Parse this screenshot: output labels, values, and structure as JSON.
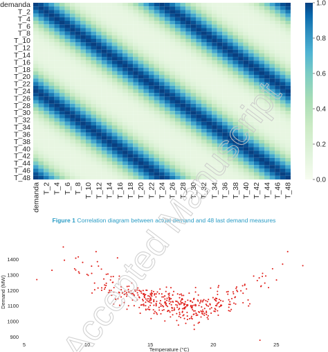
{
  "watermark": "Accepted Manuscript",
  "caption": {
    "prefix": "Figure 1",
    "text": "Correlation diagram between actual demand and 48 last demand measures"
  },
  "colors": {
    "heat_low": "#f7fcf0",
    "heat_mid": "#7bccc4",
    "heat_high": "#084081",
    "scatter_point": "#e0201b",
    "caption": "#2a9cc5"
  },
  "chart_data": [
    {
      "type": "heatmap",
      "row_labels": [
        "demanda",
        "T_2",
        "T_4",
        "T_6",
        "T_8",
        "T_10",
        "T_12",
        "T_14",
        "T_16",
        "T_18",
        "T_20",
        "T_22",
        "T_24",
        "T_26",
        "T_28",
        "T_30",
        "T_32",
        "T_34",
        "T_36",
        "T_38",
        "T_40",
        "T_42",
        "T_44",
        "T_46",
        "T_48"
      ],
      "col_labels": [
        "demanda",
        "T_2",
        "T_4",
        "T_6",
        "T_8",
        "T_10",
        "T_12",
        "T_14",
        "T_16",
        "T_18",
        "T_20",
        "T_22",
        "T_24",
        "T_26",
        "T_28",
        "T_30",
        "T_32",
        "T_34",
        "T_36",
        "T_38",
        "T_40",
        "T_42",
        "T_44",
        "T_46",
        "T_48"
      ],
      "n_variables": 49,
      "value_rule": "correlation = 0.1 + 0.9*cos(pi*lag/24)^4 where lag = |i - j| (approximate daily periodicity)",
      "colorbar": {
        "ticks": [
          "0.0",
          "0.2",
          "0.4",
          "0.6",
          "0.8",
          "1.0"
        ],
        "range": [
          0,
          1
        ]
      },
      "colorbar_tick_values": [
        0,
        0.2,
        0.4,
        0.6,
        0.8,
        1.0
      ]
    },
    {
      "type": "scatter",
      "xlabel": "Temperature (°C)",
      "ylabel": "Demand (MW)",
      "xlim": [
        5,
        28
      ],
      "ylim": [
        880,
        1500
      ],
      "x_ticks": [
        5,
        10,
        15,
        20,
        25
      ],
      "y_ticks": [
        900,
        1000,
        1100,
        1200,
        1300,
        1400
      ],
      "n_points": 420,
      "trend": "U-shaped: demand ~1300 MW at 7–10 °C, minimum ~1100 MW near 19 °C, rising to ~1350 MW at 26 °C",
      "sample_points": [
        [
          6.0,
          1270
        ],
        [
          7.2,
          1330
        ],
        [
          8.1,
          1480
        ],
        [
          9.0,
          1340
        ],
        [
          10.7,
          1450
        ],
        [
          12.4,
          1410
        ],
        [
          14.5,
          1180
        ],
        [
          16.6,
          1030
        ],
        [
          18.9,
          1060
        ],
        [
          20.2,
          1150
        ],
        [
          22.5,
          1240
        ],
        [
          23.7,
          880
        ],
        [
          24.7,
          1340
        ],
        [
          25.9,
          1450
        ],
        [
          27.1,
          1360
        ]
      ]
    }
  ]
}
